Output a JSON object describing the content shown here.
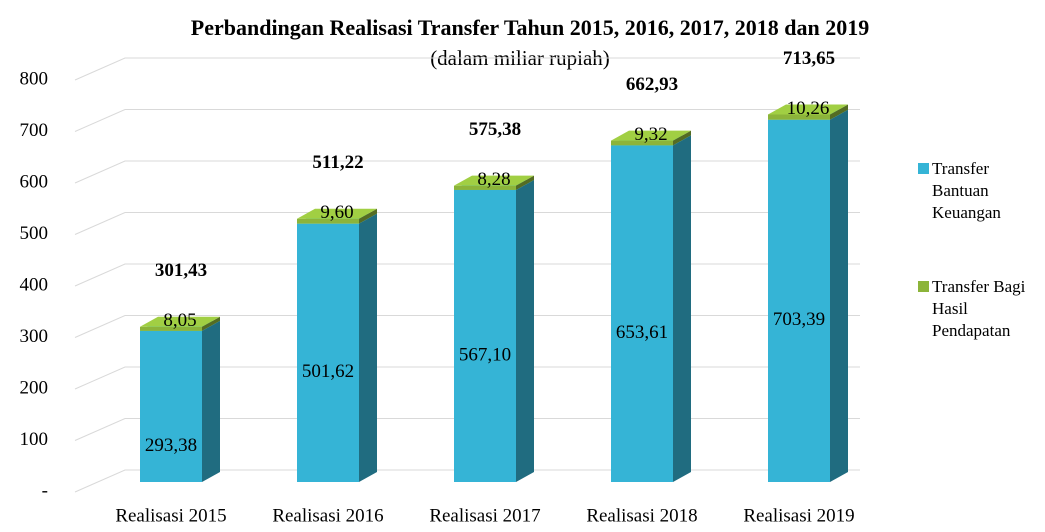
{
  "chart_data": {
    "type": "bar3d-stacked",
    "title": "Perbandingan Realisasi Transfer Tahun 2015, 2016, 2017, 2018 dan 2019",
    "subtitle": "(dalam miliar rupiah)",
    "categories": [
      "Realisasi 2015",
      "Realisasi 2016",
      "Realisasi 2017",
      "Realisasi 2018",
      "Realisasi 2019"
    ],
    "series": [
      {
        "name": "Transfer Bantuan Keuangan",
        "color": "#35b4d6",
        "values": [
          293.38,
          501.62,
          567.1,
          653.61,
          703.39
        ],
        "value_labels": [
          "293,38",
          "501,62",
          "567,10",
          "653,61",
          "703,39"
        ]
      },
      {
        "name": "Transfer Bagi Hasil Pendapatan",
        "color": "#8cb43a",
        "values": [
          8.05,
          9.6,
          8.28,
          9.32,
          10.26
        ],
        "value_labels": [
          "8,05",
          "9,60",
          "8,28",
          "9,32",
          "10,26"
        ]
      }
    ],
    "totals": [
      301.43,
      511.22,
      575.38,
      662.93,
      713.65
    ],
    "total_labels": [
      "301,43",
      "511,22",
      "575,38",
      "662,93",
      "713,65"
    ],
    "ylim": [
      0,
      800
    ],
    "yticks": [
      {
        "value": 0,
        "label": "-"
      },
      100,
      200,
      300,
      400,
      500,
      600,
      700,
      800
    ],
    "grid": true
  }
}
